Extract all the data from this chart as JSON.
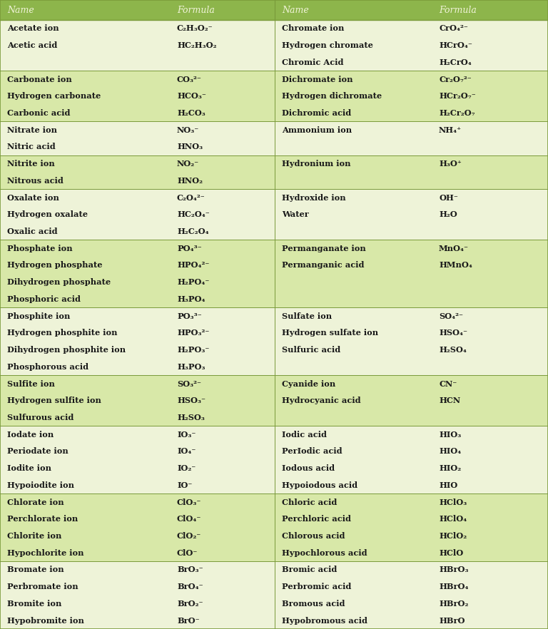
{
  "header_bg": "#8db54b",
  "header_text_color": "#f0f4d8",
  "row_bg_light": "#eef3d8",
  "row_bg_dark": "#d8e8a8",
  "text_color": "#1a1a1a",
  "border_color": "#7a9a3a",
  "header": [
    "Name",
    "Formula",
    "Name",
    "Formula"
  ],
  "groups": [
    {
      "shaded": false,
      "left": [
        [
          "Acetate ion",
          "C₂H₃O₂⁻"
        ],
        [
          "Acetic acid",
          "HC₂H₃O₂"
        ]
      ],
      "right": [
        [
          "Chromate ion",
          "CrO₄²⁻"
        ],
        [
          "Hydrogen chromate",
          "HCrO₄⁻"
        ],
        [
          "Chromic Acid",
          "H₂CrO₄"
        ]
      ]
    },
    {
      "shaded": true,
      "left": [
        [
          "Carbonate ion",
          "CO₃²⁻"
        ],
        [
          "Hydrogen carbonate",
          "HCO₃⁻"
        ],
        [
          "Carbonic acid",
          "H₂CO₃"
        ]
      ],
      "right": [
        [
          "Dichromate ion",
          "Cr₂O₇²⁻"
        ],
        [
          "Hydrogen dichromate",
          "HCr₂O₇⁻"
        ],
        [
          "Dichromic acid",
          "H₂Cr₂O₇"
        ]
      ]
    },
    {
      "shaded": false,
      "left": [
        [
          "Nitrate ion",
          "NO₃⁻"
        ],
        [
          "Nitric acid",
          "HNO₃"
        ]
      ],
      "right": [
        [
          "Ammonium ion",
          "NH₄⁺"
        ]
      ]
    },
    {
      "shaded": true,
      "left": [
        [
          "Nitrite ion",
          "NO₂⁻"
        ],
        [
          "Nitrous acid",
          "HNO₂"
        ]
      ],
      "right": [
        [
          "Hydronium ion",
          "H₃O⁺"
        ]
      ]
    },
    {
      "shaded": false,
      "left": [
        [
          "Oxalate ion",
          "C₂O₄²⁻"
        ],
        [
          "Hydrogen oxalate",
          "HC₂O₄⁻"
        ],
        [
          "Oxalic acid",
          "H₂C₂O₄"
        ]
      ],
      "right": [
        [
          "Hydroxide ion",
          "OH⁻"
        ],
        [
          "Water",
          "H₂O"
        ]
      ]
    },
    {
      "shaded": true,
      "left": [
        [
          "Phosphate ion",
          "PO₄³⁻"
        ],
        [
          "Hydrogen phosphate",
          "HPO₄²⁻"
        ],
        [
          "Dihydrogen phosphate",
          "H₂PO₄⁻"
        ],
        [
          "Phosphoric acid",
          "H₃PO₄"
        ]
      ],
      "right": [
        [
          "Permanganate ion",
          "MnO₄⁻"
        ],
        [
          "Permanganic acid",
          "HMnO₄"
        ]
      ]
    },
    {
      "shaded": false,
      "left": [
        [
          "Phosphite ion",
          "PO₃³⁻"
        ],
        [
          "Hydrogen phosphite ion",
          "HPO₃²⁻"
        ],
        [
          "Dihydrogen phosphite ion",
          "H₂PO₃⁻"
        ],
        [
          "Phosphorous acid",
          "H₃PO₃"
        ]
      ],
      "right": [
        [
          "Sulfate ion",
          "SO₄²⁻"
        ],
        [
          "Hydrogen sulfate ion",
          "HSO₄⁻"
        ],
        [
          "Sulfuric acid",
          "H₂SO₄"
        ]
      ]
    },
    {
      "shaded": true,
      "left": [
        [
          "Sulfite ion",
          "SO₃²⁻"
        ],
        [
          "Hydrogen sulfite ion",
          "HSO₃⁻"
        ],
        [
          "Sulfurous acid",
          "H₂SO₃"
        ]
      ],
      "right": [
        [
          "Cyanide ion",
          "CN⁻"
        ],
        [
          "Hydrocyanic acid",
          "HCN"
        ]
      ]
    },
    {
      "shaded": false,
      "left": [
        [
          "Iodate ion",
          "IO₃⁻"
        ],
        [
          "Periodate ion",
          "IO₄⁻"
        ],
        [
          "Iodite ion",
          "IO₂⁻"
        ],
        [
          "Hypoiodite ion",
          "IO⁻"
        ]
      ],
      "right": [
        [
          "Iodic acid",
          "HIO₃"
        ],
        [
          "PerIodic acid",
          "HIO₄"
        ],
        [
          "Iodous acid",
          "HIO₂"
        ],
        [
          "Hypoiodous acid",
          "HIO"
        ]
      ]
    },
    {
      "shaded": true,
      "left": [
        [
          "Chlorate ion",
          "ClO₃⁻"
        ],
        [
          "Perchlorate ion",
          "ClO₄⁻"
        ],
        [
          "Chlorite ion",
          "ClO₂⁻"
        ],
        [
          "Hypochlorite ion",
          "ClO⁻"
        ]
      ],
      "right": [
        [
          "Chloric acid",
          "HClO₃"
        ],
        [
          "Perchloric acid",
          "HClO₄"
        ],
        [
          "Chlorous acid",
          "HClO₂"
        ],
        [
          "Hypochlorous acid",
          "HClO"
        ]
      ]
    },
    {
      "shaded": false,
      "left": [
        [
          "Bromate ion",
          "BrO₃⁻"
        ],
        [
          "Perbromate ion",
          "BrO₄⁻"
        ],
        [
          "Bromite ion",
          "BrO₂⁻"
        ],
        [
          "Hypobromite ion",
          "BrO⁻"
        ]
      ],
      "right": [
        [
          "Bromic acid",
          "HBrO₃"
        ],
        [
          "Perbromic acid",
          "HBrO₄"
        ],
        [
          "Bromous acid",
          "HBrO₂"
        ],
        [
          "Hypobromous acid",
          "HBrO"
        ]
      ]
    }
  ]
}
